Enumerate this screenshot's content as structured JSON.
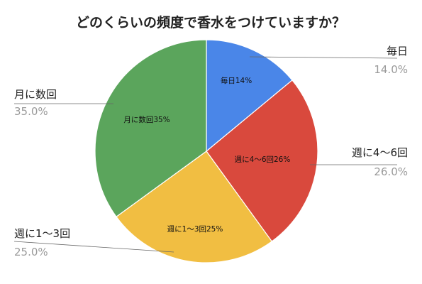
{
  "chart_data": {
    "type": "pie",
    "title": "どのくらいの頻度で香水をつけていますか？",
    "slices": [
      {
        "name": "毎日",
        "value": 14,
        "percent_label": "14.0%",
        "inner_label": "毎日14%",
        "color": "#4a86e8"
      },
      {
        "name": "週に4〜6回",
        "value": 26,
        "percent_label": "26.0%",
        "inner_label": "週に4〜6回26%",
        "color": "#d9493d"
      },
      {
        "name": "週に1〜3回",
        "value": 25,
        "percent_label": "25.0%",
        "inner_label": "週に1〜3回25%",
        "color": "#f1be42"
      },
      {
        "name": "月に数回",
        "value": 35,
        "percent_label": "35.0%",
        "inner_label": "月に数回35%",
        "color": "#5ba55c"
      }
    ],
    "start_angle": "12 o'clock",
    "direction": "clockwise",
    "legend": "outside labels with leader lines"
  }
}
